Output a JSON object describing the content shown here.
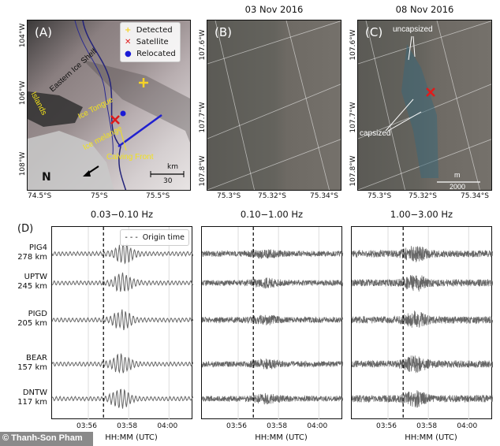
{
  "panel_a": {
    "label": "(A)",
    "legend": [
      {
        "symbol": "plus",
        "color": "#f5d327",
        "label": "Detected"
      },
      {
        "symbol": "x",
        "color": "#e01b1b",
        "label": "Satellite"
      },
      {
        "symbol": "circle",
        "color": "#1b1bd6",
        "label": "Relocated"
      }
    ],
    "annotations": {
      "shelf": "Eastern Ice Shelf",
      "islands": "Islands",
      "tongue": "Ice Tongue",
      "melange": "Ice melange",
      "front": "Calving Front",
      "north": "N"
    },
    "scale": {
      "unit": "km",
      "value": "30"
    },
    "y_ticks": [
      "104°W",
      "106°W",
      "108°W"
    ],
    "x_ticks": [
      "74.5°S",
      "75°S",
      "75.5°S"
    ]
  },
  "panel_b": {
    "title": "03 Nov 2016",
    "label": "(B)",
    "y_ticks": [
      "107.6°W",
      "107.7°W",
      "107.8°W"
    ],
    "x_ticks": [
      "75.3°S",
      "75.32°S",
      "75.34°S"
    ]
  },
  "panel_c": {
    "title": "08 Nov 2016",
    "label": "(C)",
    "annotations": {
      "uncapsized": "uncapsized",
      "capsized": "capsized"
    },
    "scale": {
      "unit": "m",
      "value": "2000"
    },
    "y_ticks": [
      "107.6°W",
      "107.7°W",
      "107.8°W"
    ],
    "x_ticks": [
      "75.3°S",
      "75.32°S",
      "75.34°S"
    ]
  },
  "chart_data": {
    "type": "line",
    "label": "(D)",
    "xlabel": "HH:MM (UTC)",
    "x_ticks": [
      "03:56",
      "03:58",
      "04:00"
    ],
    "xlim": [
      "03:54.2",
      "04:01.2"
    ],
    "origin_time": "03:56.75",
    "legend": {
      "label": "Origin time",
      "placement": "top-right"
    },
    "grid": true,
    "bands": [
      "0.03−0.10 Hz",
      "0.10−1.00 Hz",
      "1.00−3.00 Hz"
    ],
    "stations": [
      {
        "name": "PIG4",
        "distance": "278 km"
      },
      {
        "name": "UPTW",
        "distance": "245 km"
      },
      {
        "name": "PIGD",
        "distance": "205 km"
      },
      {
        "name": "BEAR",
        "distance": "157 km"
      },
      {
        "name": "DNTW",
        "distance": "117 km"
      }
    ],
    "trace_color": "#666666"
  },
  "credit": "© Thanh-Son Pham"
}
